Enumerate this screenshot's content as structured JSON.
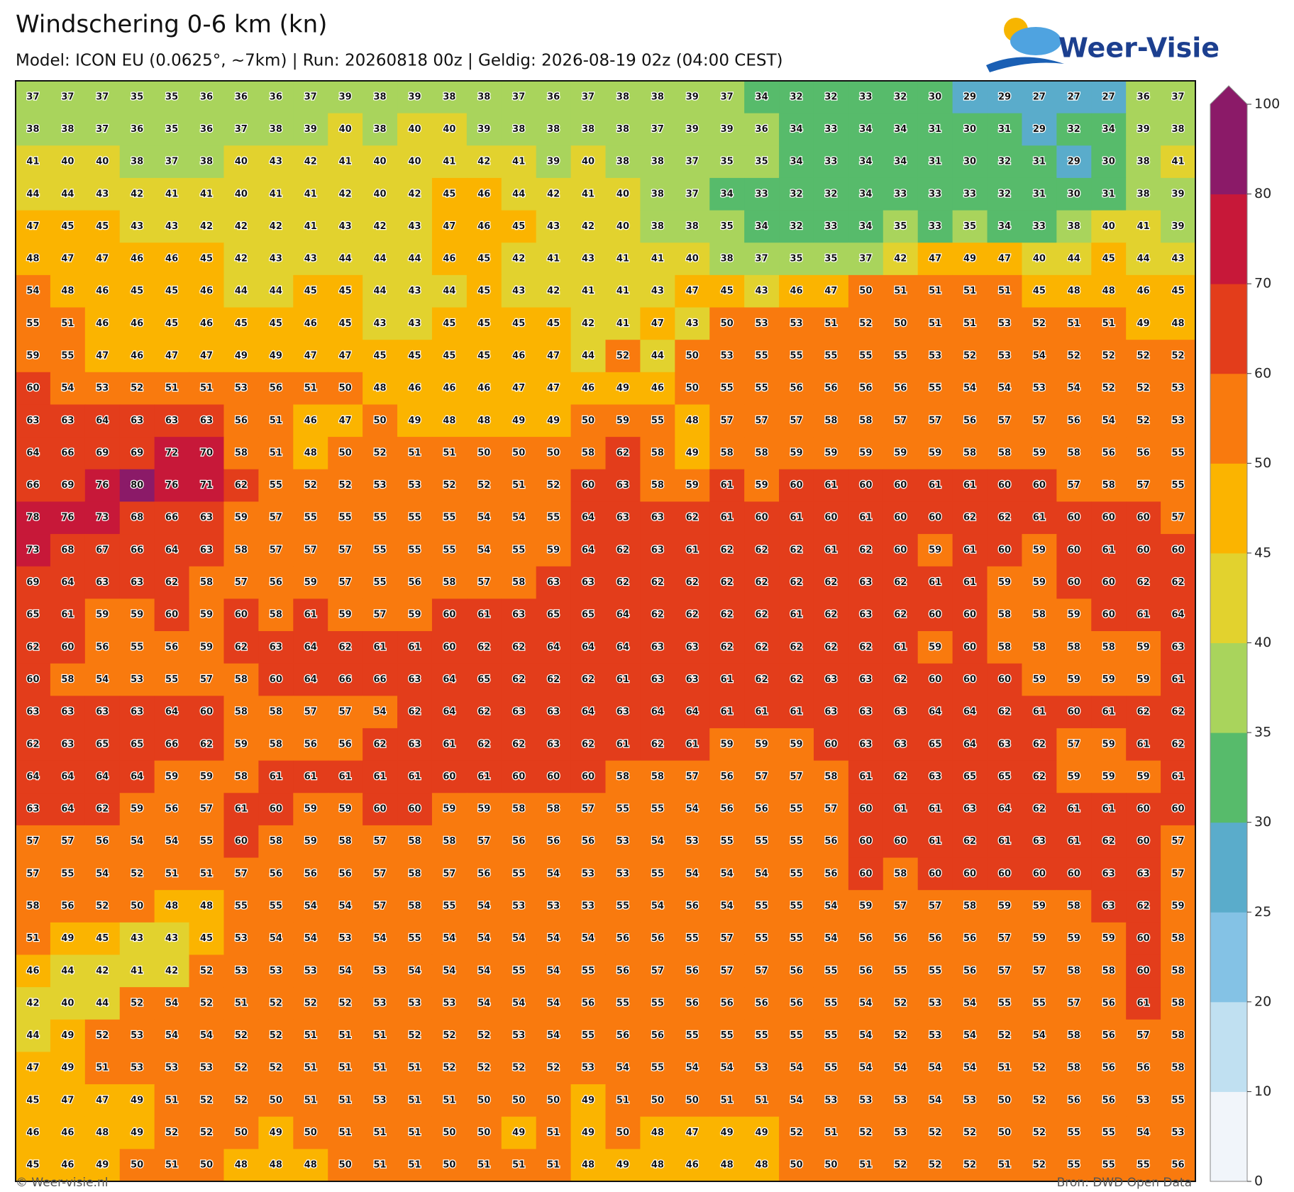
{
  "header": {
    "title": "Windschering 0-6 km (kn)",
    "subtitle": "Model: ICON EU (0.0625°, ~7km)  |  Run: 20260818 00z  |  Geldig: 2026-08-19 02z (04:00 CEST)",
    "logo": "Weer-Visie"
  },
  "grid": {
    "rows": [
      [
        37,
        37,
        37,
        35,
        35,
        36,
        36,
        36,
        37,
        39,
        38,
        39,
        38,
        38,
        37,
        36,
        37,
        38,
        38,
        39,
        37,
        34,
        32,
        32,
        33,
        32,
        30,
        29,
        29,
        27,
        27,
        27,
        36,
        37
      ],
      [
        38,
        38,
        37,
        36,
        35,
        36,
        37,
        38,
        39,
        40,
        38,
        40,
        40,
        39,
        38,
        38,
        38,
        38,
        37,
        39,
        39,
        36,
        34,
        33,
        34,
        34,
        31,
        30,
        31,
        29,
        32,
        34,
        39,
        38
      ],
      [
        41,
        40,
        40,
        38,
        37,
        38,
        40,
        43,
        42,
        41,
        40,
        40,
        41,
        42,
        41,
        39,
        40,
        38,
        38,
        37,
        35,
        35,
        34,
        33,
        34,
        34,
        31,
        30,
        32,
        31,
        29,
        30,
        38,
        41
      ],
      [
        44,
        44,
        43,
        42,
        41,
        41,
        40,
        41,
        41,
        42,
        40,
        42,
        45,
        46,
        44,
        42,
        41,
        40,
        38,
        37,
        34,
        33,
        32,
        32,
        34,
        33,
        33,
        33,
        32,
        31,
        30,
        31,
        38,
        39
      ],
      [
        47,
        45,
        45,
        43,
        43,
        42,
        42,
        42,
        41,
        43,
        42,
        43,
        47,
        46,
        45,
        43,
        42,
        40,
        38,
        38,
        35,
        34,
        32,
        33,
        34,
        35,
        33,
        35,
        34,
        33,
        38,
        40,
        41,
        39
      ],
      [
        48,
        47,
        47,
        46,
        46,
        45,
        42,
        43,
        43,
        44,
        44,
        44,
        46,
        45,
        42,
        41,
        43,
        41,
        41,
        40,
        38,
        37,
        35,
        35,
        37,
        42,
        47,
        49,
        47,
        40,
        44,
        45,
        44,
        43
      ],
      [
        54,
        48,
        46,
        45,
        45,
        46,
        44,
        44,
        45,
        45,
        44,
        43,
        44,
        45,
        43,
        42,
        41,
        41,
        43,
        47,
        45,
        43,
        46,
        47,
        50,
        51,
        51,
        51,
        51,
        45,
        48,
        48,
        46,
        45
      ],
      [
        55,
        51,
        46,
        46,
        45,
        46,
        45,
        45,
        46,
        45,
        43,
        43,
        45,
        45,
        45,
        45,
        42,
        41,
        47,
        43,
        50,
        53,
        53,
        51,
        52,
        50,
        51,
        51,
        53,
        52,
        51,
        51,
        49,
        48
      ],
      [
        59,
        55,
        47,
        46,
        47,
        47,
        49,
        49,
        47,
        47,
        45,
        45,
        45,
        45,
        46,
        47,
        44,
        52,
        44,
        50,
        53,
        55,
        55,
        55,
        55,
        55,
        53,
        52,
        53,
        54,
        52,
        52,
        52,
        52
      ],
      [
        60,
        54,
        53,
        52,
        51,
        51,
        53,
        56,
        51,
        50,
        48,
        46,
        46,
        46,
        47,
        47,
        46,
        49,
        46,
        50,
        55,
        55,
        56,
        56,
        56,
        56,
        55,
        54,
        54,
        53,
        54,
        52,
        52,
        53
      ],
      [
        63,
        63,
        64,
        63,
        63,
        63,
        56,
        51,
        46,
        47,
        50,
        49,
        48,
        48,
        49,
        49,
        50,
        59,
        55,
        48,
        57,
        57,
        57,
        58,
        58,
        57,
        57,
        56,
        57,
        57,
        56,
        54,
        52,
        53
      ],
      [
        64,
        66,
        69,
        69,
        72,
        70,
        58,
        51,
        48,
        50,
        52,
        51,
        51,
        50,
        50,
        50,
        58,
        62,
        58,
        49,
        58,
        58,
        59,
        59,
        59,
        59,
        59,
        58,
        58,
        59,
        58,
        56,
        56,
        55
      ],
      [
        66,
        69,
        76,
        80,
        76,
        71,
        62,
        55,
        52,
        52,
        53,
        53,
        52,
        52,
        51,
        52,
        60,
        63,
        58,
        59,
        61,
        59,
        60,
        61,
        60,
        60,
        61,
        61,
        60,
        60,
        57,
        58,
        57,
        55
      ],
      [
        78,
        76,
        73,
        68,
        66,
        63,
        59,
        57,
        55,
        55,
        55,
        55,
        55,
        54,
        54,
        55,
        64,
        63,
        63,
        62,
        61,
        60,
        61,
        60,
        61,
        60,
        60,
        62,
        62,
        61,
        60,
        60,
        60,
        57
      ],
      [
        73,
        68,
        67,
        66,
        64,
        63,
        58,
        57,
        57,
        57,
        55,
        55,
        55,
        54,
        55,
        59,
        64,
        62,
        63,
        61,
        62,
        62,
        62,
        61,
        62,
        60,
        59,
        61,
        60,
        59,
        60,
        61,
        60,
        60
      ],
      [
        69,
        64,
        63,
        63,
        62,
        58,
        57,
        56,
        59,
        57,
        55,
        56,
        58,
        57,
        58,
        63,
        63,
        62,
        62,
        62,
        62,
        62,
        62,
        62,
        63,
        62,
        61,
        61,
        59,
        59,
        60,
        60,
        62,
        62
      ],
      [
        65,
        61,
        59,
        59,
        60,
        59,
        60,
        58,
        61,
        59,
        57,
        59,
        60,
        61,
        63,
        65,
        65,
        64,
        62,
        62,
        62,
        62,
        61,
        62,
        63,
        62,
        60,
        60,
        58,
        58,
        59,
        60,
        61,
        64
      ],
      [
        62,
        60,
        56,
        55,
        56,
        59,
        62,
        63,
        64,
        62,
        61,
        61,
        60,
        62,
        62,
        64,
        64,
        64,
        63,
        63,
        62,
        62,
        62,
        62,
        62,
        61,
        59,
        60,
        58,
        58,
        58,
        58,
        59,
        63
      ],
      [
        60,
        58,
        54,
        53,
        55,
        57,
        58,
        60,
        64,
        66,
        66,
        63,
        64,
        65,
        62,
        62,
        62,
        61,
        63,
        63,
        61,
        62,
        62,
        63,
        63,
        62,
        60,
        60,
        60,
        59,
        59,
        59,
        59,
        61
      ],
      [
        63,
        63,
        63,
        63,
        64,
        60,
        58,
        58,
        57,
        57,
        54,
        62,
        64,
        62,
        63,
        63,
        64,
        63,
        64,
        64,
        61,
        61,
        61,
        63,
        63,
        63,
        64,
        64,
        62,
        61,
        60,
        61,
        62,
        62
      ],
      [
        62,
        63,
        65,
        65,
        66,
        62,
        59,
        58,
        56,
        56,
        62,
        63,
        61,
        62,
        62,
        63,
        62,
        61,
        62,
        61,
        59,
        59,
        59,
        60,
        63,
        63,
        65,
        64,
        63,
        62,
        57,
        59,
        61,
        62
      ],
      [
        64,
        64,
        64,
        64,
        59,
        59,
        58,
        61,
        61,
        61,
        61,
        61,
        60,
        61,
        60,
        60,
        60,
        58,
        58,
        57,
        56,
        57,
        57,
        58,
        61,
        62,
        63,
        65,
        65,
        62,
        59,
        59,
        59,
        61
      ],
      [
        63,
        64,
        62,
        59,
        56,
        57,
        61,
        60,
        59,
        59,
        60,
        60,
        59,
        59,
        58,
        58,
        57,
        55,
        55,
        54,
        56,
        56,
        55,
        57,
        60,
        61,
        61,
        63,
        64,
        62,
        61,
        61,
        60,
        60
      ],
      [
        57,
        57,
        56,
        54,
        54,
        55,
        60,
        58,
        59,
        58,
        57,
        58,
        58,
        57,
        56,
        56,
        56,
        53,
        54,
        53,
        55,
        55,
        55,
        56,
        60,
        60,
        61,
        62,
        61,
        63,
        61,
        62,
        60,
        57
      ],
      [
        57,
        55,
        54,
        52,
        51,
        51,
        57,
        56,
        56,
        56,
        57,
        58,
        57,
        56,
        55,
        54,
        53,
        53,
        55,
        54,
        54,
        54,
        55,
        56,
        60,
        58,
        60,
        60,
        60,
        60,
        60,
        63,
        63,
        57
      ],
      [
        58,
        56,
        52,
        50,
        48,
        48,
        55,
        55,
        54,
        54,
        57,
        58,
        55,
        54,
        53,
        53,
        53,
        55,
        54,
        56,
        54,
        55,
        55,
        54,
        59,
        57,
        57,
        58,
        59,
        59,
        58,
        63,
        62,
        59
      ],
      [
        51,
        49,
        45,
        43,
        43,
        45,
        53,
        54,
        54,
        53,
        54,
        55,
        54,
        54,
        54,
        54,
        54,
        56,
        56,
        55,
        57,
        55,
        55,
        54,
        56,
        56,
        56,
        56,
        57,
        59,
        59,
        59,
        60,
        58
      ],
      [
        46,
        44,
        42,
        41,
        42,
        52,
        53,
        53,
        53,
        54,
        53,
        54,
        54,
        54,
        55,
        54,
        55,
        56,
        57,
        56,
        57,
        57,
        56,
        55,
        56,
        55,
        55,
        56,
        57,
        57,
        58,
        58,
        60,
        58
      ],
      [
        42,
        40,
        44,
        52,
        54,
        52,
        51,
        52,
        52,
        52,
        53,
        53,
        53,
        54,
        54,
        54,
        56,
        55,
        55,
        56,
        56,
        56,
        56,
        55,
        54,
        52,
        53,
        54,
        55,
        55,
        57,
        56,
        61,
        58
      ],
      [
        44,
        49,
        52,
        53,
        54,
        54,
        52,
        52,
        51,
        51,
        51,
        52,
        52,
        52,
        53,
        54,
        55,
        56,
        56,
        55,
        55,
        55,
        55,
        55,
        54,
        52,
        53,
        54,
        52,
        54,
        58,
        56,
        57,
        58
      ],
      [
        47,
        49,
        51,
        53,
        53,
        53,
        52,
        52,
        51,
        51,
        51,
        51,
        52,
        52,
        52,
        52,
        53,
        54,
        55,
        54,
        54,
        53,
        54,
        55,
        54,
        54,
        54,
        54,
        51,
        52,
        58,
        56,
        56,
        58
      ],
      [
        45,
        47,
        47,
        49,
        51,
        52,
        52,
        50,
        51,
        51,
        53,
        51,
        51,
        50,
        50,
        50,
        49,
        51,
        50,
        50,
        51,
        51,
        54,
        53,
        53,
        53,
        54,
        53,
        50,
        52,
        56,
        56,
        53,
        55
      ],
      [
        46,
        46,
        48,
        49,
        52,
        52,
        50,
        49,
        50,
        51,
        51,
        51,
        50,
        50,
        49,
        51,
        49,
        50,
        48,
        47,
        49,
        49,
        52,
        51,
        52,
        53,
        52,
        52,
        50,
        52,
        55,
        55,
        54,
        53
      ],
      [
        45,
        46,
        49,
        50,
        51,
        50,
        48,
        48,
        48,
        50,
        51,
        51,
        50,
        51,
        51,
        51,
        48,
        49,
        48,
        46,
        48,
        48,
        50,
        50,
        51,
        52,
        52,
        52,
        51,
        52,
        55,
        55,
        55,
        56
      ]
    ]
  },
  "colorbar": {
    "ticks": [
      0,
      10,
      20,
      25,
      30,
      35,
      40,
      45,
      50,
      60,
      70,
      80,
      100
    ],
    "colors": [
      "#f1f5fa",
      "#c0e0f1",
      "#84c2e5",
      "#5aaccb",
      "#57bb6b",
      "#a9d45c",
      "#e2d22e",
      "#fbb400",
      "#f97a0e",
      "#e33d1b",
      "#c71839",
      "#8b1a68"
    ]
  },
  "footer": {
    "left": "© Weer-visie.nl",
    "right": "Bron: DWD Open Data"
  }
}
